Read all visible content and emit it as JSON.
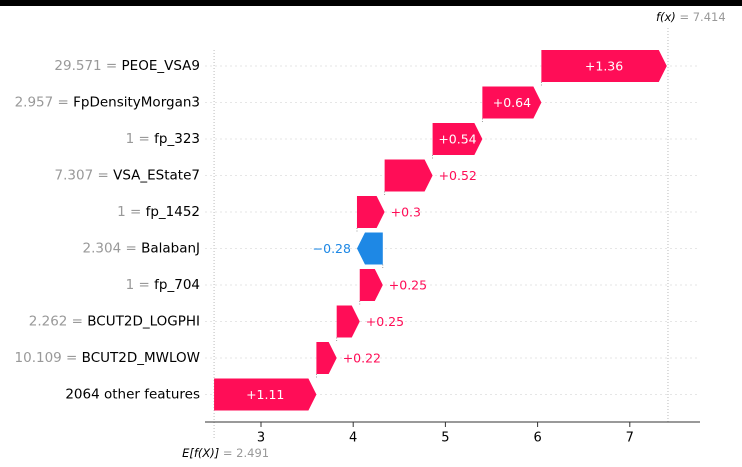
{
  "chart_data": {
    "type": "waterfall",
    "base_value": 2.491,
    "output_value": 7.414,
    "fx_label": "f(x)",
    "efx_label": "E[f(X)]",
    "x_ticks": [
      "3",
      "4",
      "5",
      "6",
      "7"
    ],
    "x_range": [
      1.93,
      7.7
    ],
    "features": [
      {
        "value": "29.571",
        "name": "PEOE_VSA9",
        "shap": 1.36,
        "label": "+1.36"
      },
      {
        "value": "2.957",
        "name": "FpDensityMorgan3",
        "shap": 0.64,
        "label": "+0.64"
      },
      {
        "value": "1",
        "name": "fp_323",
        "shap": 0.54,
        "label": "+0.54"
      },
      {
        "value": "7.307",
        "name": "VSA_EState7",
        "shap": 0.52,
        "label": "+0.52"
      },
      {
        "value": "1",
        "name": "fp_1452",
        "shap": 0.3,
        "label": "+0.3"
      },
      {
        "value": "2.304",
        "name": "BalabanJ",
        "shap": -0.28,
        "label": "−0.28"
      },
      {
        "value": "1",
        "name": "fp_704",
        "shap": 0.25,
        "label": "+0.25"
      },
      {
        "value": "2.262",
        "name": "BCUT2D_LOGPHI",
        "shap": 0.25,
        "label": "+0.25"
      },
      {
        "value": "10.109",
        "name": "BCUT2D_MWLOW",
        "shap": 0.22,
        "label": "+0.22"
      },
      {
        "value": "",
        "name": "2064 other features",
        "shap": 1.11,
        "label": "+1.11"
      }
    ],
    "colors": {
      "positive": "#ff0d57",
      "negative": "#1e88e5",
      "muted": "#999999",
      "axis": "#333333"
    }
  }
}
